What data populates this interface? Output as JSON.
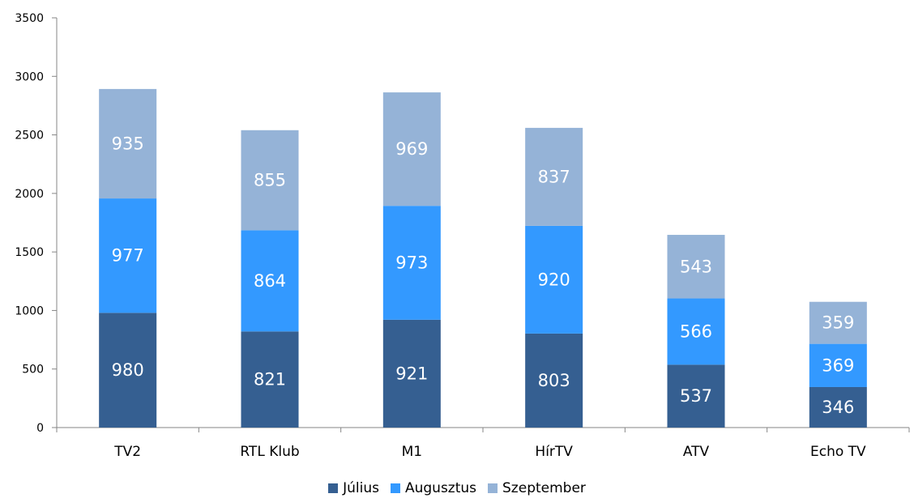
{
  "chart_data": {
    "type": "bar",
    "stacked": true,
    "categories": [
      "TV2",
      "RTL Klub",
      "M1",
      "HírTV",
      "ATV",
      "Echo TV"
    ],
    "series": [
      {
        "name": "Július",
        "values": [
          980,
          821,
          921,
          803,
          537,
          346
        ],
        "color": "#355F91"
      },
      {
        "name": "Augusztus",
        "values": [
          977,
          864,
          973,
          920,
          566,
          369
        ],
        "color": "#3399FF"
      },
      {
        "name": "Szeptember",
        "values": [
          935,
          855,
          969,
          837,
          543,
          359
        ],
        "color": "#95B3D7"
      }
    ],
    "ylim": [
      0,
      3500
    ],
    "yticks": [
      0,
      500,
      1000,
      1500,
      2000,
      2500,
      3000,
      3500
    ],
    "grid": false,
    "legend_position": "bottom"
  }
}
